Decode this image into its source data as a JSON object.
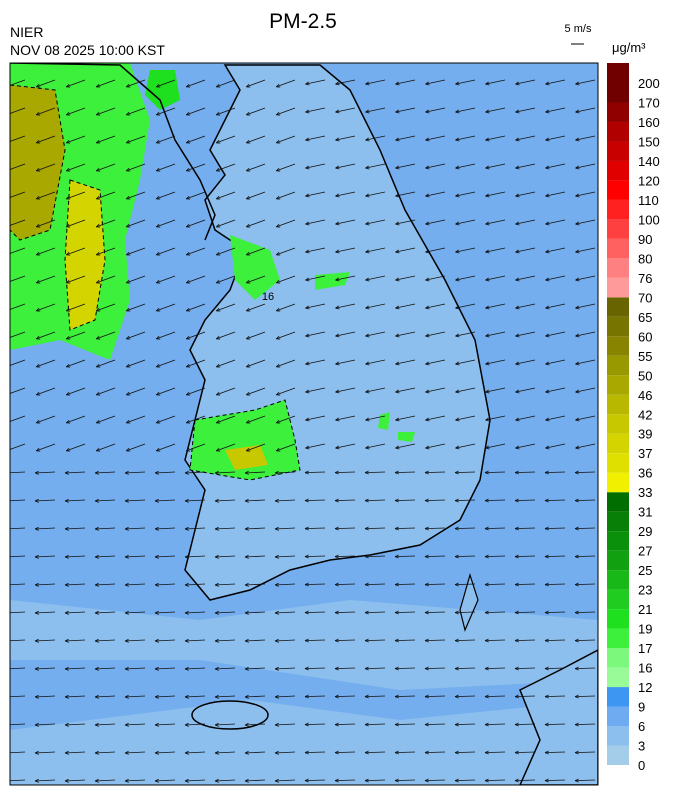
{
  "header": {
    "title": "PM-2.5",
    "agency": "NIER",
    "datetime": "NOV 08 2025 10:00 KST",
    "wind_scale": "5 m/s"
  },
  "colorbar": {
    "unit": "μg/m³",
    "ticks": [
      0,
      3,
      6,
      9,
      12,
      16,
      17,
      19,
      21,
      23,
      25,
      27,
      29,
      31,
      33,
      36,
      37,
      39,
      42,
      46,
      50,
      55,
      60,
      65,
      70,
      76,
      80,
      90,
      100,
      110,
      120,
      140,
      150,
      160,
      170,
      200
    ],
    "colors": [
      "#a4cdea",
      "#8cbfee",
      "#6fabf0",
      "#3d96f2",
      "#98fb98",
      "#7cf87c",
      "#3cf03c",
      "#1ee01e",
      "#20cc20",
      "#18b818",
      "#10a010",
      "#0a900a",
      "#088008",
      "#006e00",
      "#f0f000",
      "#e0e000",
      "#d4d400",
      "#c8c800",
      "#b8b800",
      "#a8a800",
      "#989800",
      "#888400",
      "#787400",
      "#686400",
      "#ff9a9a",
      "#ff8080",
      "#ff6060",
      "#ff4040",
      "#ff2020",
      "#ff0000",
      "#e00000",
      "#c80000",
      "#b00000",
      "#900000",
      "#700000"
    ]
  },
  "map": {
    "contour_labels": [
      "16"
    ]
  }
}
